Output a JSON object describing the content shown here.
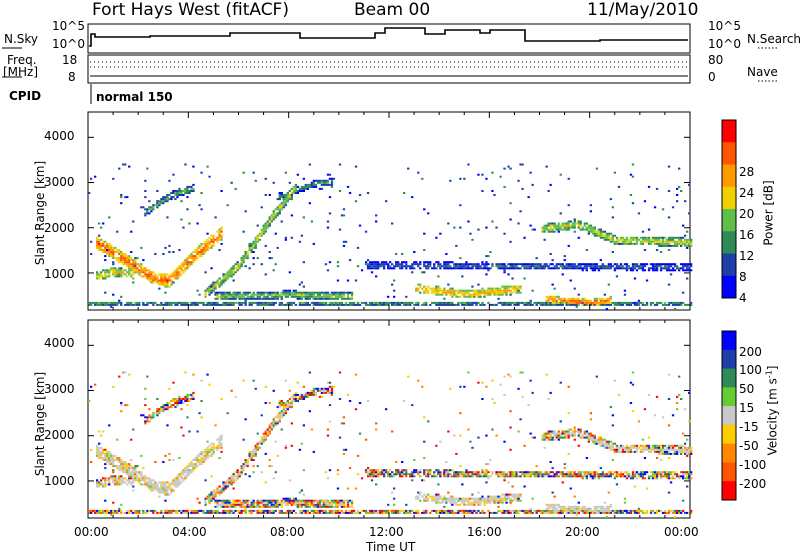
{
  "header": {
    "title": "Fort Hays West (fitACF)",
    "beam": "Beam 00",
    "date": "11/May/2010"
  },
  "status_panels": {
    "nsky_label": "N.Sky",
    "nsearch_label": "N.Search",
    "count_ticks_left": [
      "10^5",
      "10^0"
    ],
    "count_ticks_right": [
      "10^5",
      "10^0"
    ],
    "freq_label_1": "Freq.",
    "freq_label_2": "[MHz]",
    "freq_ticks": [
      "18",
      "8"
    ],
    "nave_label": "Nave",
    "nave_ticks": [
      "80",
      "0"
    ],
    "cpid_label": "CPID",
    "cpid_value": "normal 150"
  },
  "chart_data": [
    {
      "type": "heatmap",
      "name": "power",
      "ylabel": "Slant Range [km]",
      "xlabel": "Time UT",
      "xlim": [
        "00:00",
        "24:00"
      ],
      "ylim": [
        180,
        4560
      ],
      "y_ticks": [
        "4000",
        "3000",
        "2000",
        "1000"
      ],
      "x_ticks": [
        "00:00",
        "04:00",
        "08:00",
        "12:00",
        "16:00",
        "20:00",
        "00:00"
      ],
      "colorbar": {
        "label": "Power [dB]",
        "tick_labels": [
          "28",
          "24",
          "20",
          "16",
          "12",
          "8",
          "4"
        ],
        "levels": [
          0,
          4,
          8,
          12,
          16,
          20,
          24,
          28,
          32
        ],
        "colors": [
          "#0000ff",
          "#1f3fa8",
          "#2e8b57",
          "#5fbf4a",
          "#f0d000",
          "#ff9900",
          "#ff5500",
          "#ff0000"
        ]
      }
    },
    {
      "type": "heatmap",
      "name": "velocity",
      "ylabel": "Slant Range [km]",
      "xlabel": "Time UT",
      "xlim": [
        "00:00",
        "24:00"
      ],
      "ylim": [
        180,
        4560
      ],
      "y_ticks": [
        "4000",
        "3000",
        "2000",
        "1000"
      ],
      "x_ticks": [
        "00:00",
        "04:00",
        "08:00",
        "12:00",
        "16:00",
        "20:00",
        "00:00"
      ],
      "colorbar": {
        "label_main": "Velocity [m s",
        "label_sup": "-1",
        "label_end": "]",
        "tick_labels": [
          "200",
          "100",
          "50",
          "15",
          "-15",
          "-50",
          "-100",
          "-200"
        ],
        "colors": [
          "#0000ff",
          "#1f3fa8",
          "#2e8b57",
          "#66cc33",
          "#c8c8c8",
          "#ffcc00",
          "#ff8800",
          "#ff5500",
          "#ff0000"
        ]
      }
    }
  ]
}
